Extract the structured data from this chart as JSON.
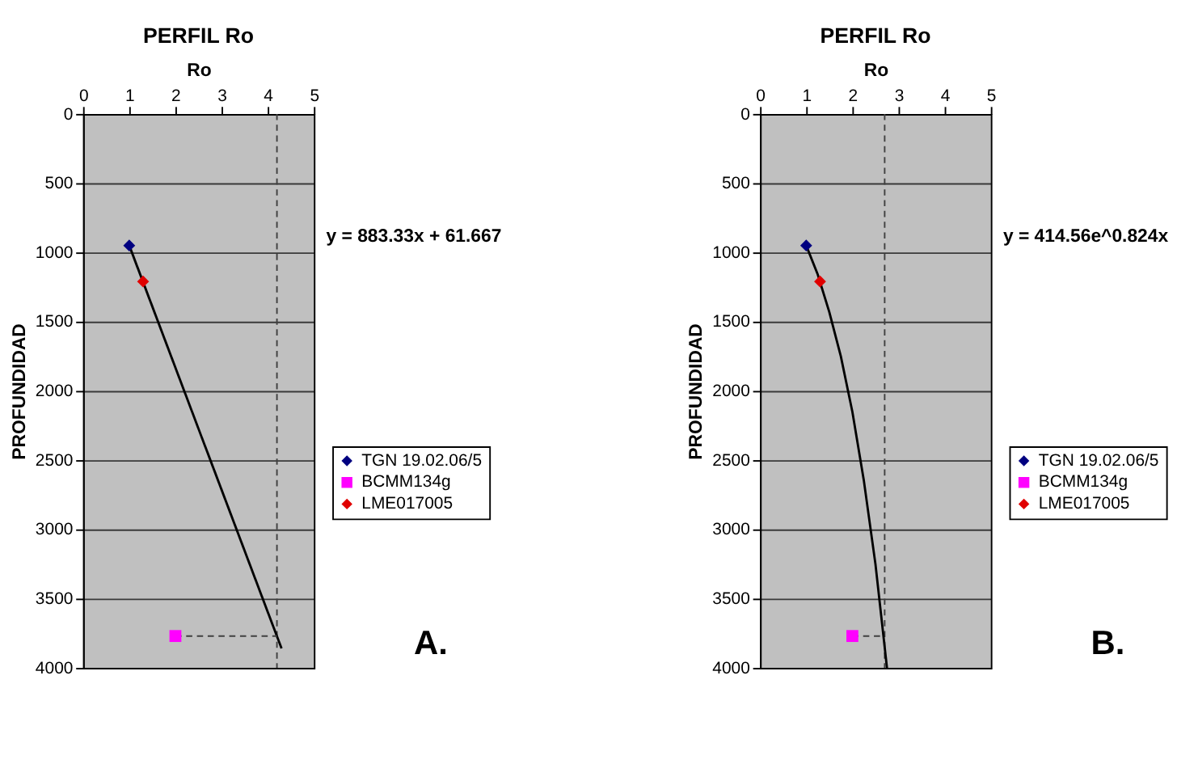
{
  "chart_data": [
    {
      "type": "scatter",
      "title": "PERFIL Ro",
      "xlabel": "Ro",
      "ylabel": "PROFUNDIDAD",
      "xlim": [
        0,
        5
      ],
      "xticks": [
        0,
        1,
        2,
        3,
        4,
        5
      ],
      "ylim": [
        4000,
        0
      ],
      "yticks": [
        0,
        500,
        1000,
        1500,
        2000,
        2500,
        3000,
        3500,
        4000
      ],
      "grid": "y",
      "legend": "right",
      "series": [
        {
          "name": "TGN 19.02.06/5",
          "color": "#000080",
          "marker": "diamond",
          "x": [
            1
          ],
          "values": [
            950
          ]
        },
        {
          "name": "BCMM134g",
          "color": "#ff00ff",
          "marker": "square",
          "x": [
            2
          ],
          "values": [
            3770
          ]
        },
        {
          "name": "LME017005",
          "color": "#e00000",
          "marker": "diamond",
          "x": [
            1.3
          ],
          "values": [
            1210
          ]
        },
        {
          "type": "line",
          "color": "#000000",
          "marker": "none",
          "line_style": "solid",
          "x": [
            1,
            4.3
          ],
          "values": [
            950,
            3860
          ]
        },
        {
          "type": "line",
          "color": "#404040",
          "marker": "none",
          "line_style": "dashed",
          "x": [
            2,
            4.2
          ],
          "values": [
            3770,
            3770
          ]
        }
      ],
      "ref_lines": [
        {
          "axis": "x",
          "value": 4.2,
          "color": "#404040",
          "line_style": "dashed"
        }
      ],
      "annotations": [
        "y = 883.33x + 61.667",
        "A."
      ]
    },
    {
      "type": "scatter",
      "title": "PERFIL Ro",
      "xlabel": "Ro",
      "ylabel": "PROFUNDIDAD",
      "xlim": [
        0,
        5
      ],
      "xticks": [
        0,
        1,
        2,
        3,
        4,
        5
      ],
      "ylim": [
        4000,
        0
      ],
      "yticks": [
        0,
        500,
        1000,
        1500,
        2000,
        2500,
        3000,
        3500,
        4000
      ],
      "grid": "y",
      "legend": "right",
      "series": [
        {
          "name": "TGN 19.02.06/5",
          "color": "#000080",
          "marker": "diamond",
          "x": [
            1
          ],
          "values": [
            950
          ]
        },
        {
          "name": "BCMM134g",
          "color": "#ff00ff",
          "marker": "square",
          "x": [
            2
          ],
          "values": [
            3770
          ]
        },
        {
          "name": "LME017005",
          "color": "#e00000",
          "marker": "diamond",
          "x": [
            1.3
          ],
          "values": [
            1210
          ]
        },
        {
          "type": "line",
          "color": "#000000",
          "marker": "none",
          "line_style": "solid",
          "x": [
            1,
            1.25,
            1.5,
            1.75,
            2,
            2.25,
            2.5,
            2.75
          ],
          "values": [
            950,
            1160,
            1430,
            1750,
            2150,
            2650,
            3250,
            4000
          ]
        },
        {
          "type": "line",
          "color": "#404040",
          "marker": "none",
          "line_style": "dashed",
          "x": [
            2,
            2.7
          ],
          "values": [
            3770,
            3770
          ]
        }
      ],
      "ref_lines": [
        {
          "axis": "x",
          "value": 2.7,
          "color": "#404040",
          "line_style": "dashed"
        }
      ],
      "annotations": [
        "y = 414.56e^0.824x",
        "B."
      ]
    }
  ]
}
